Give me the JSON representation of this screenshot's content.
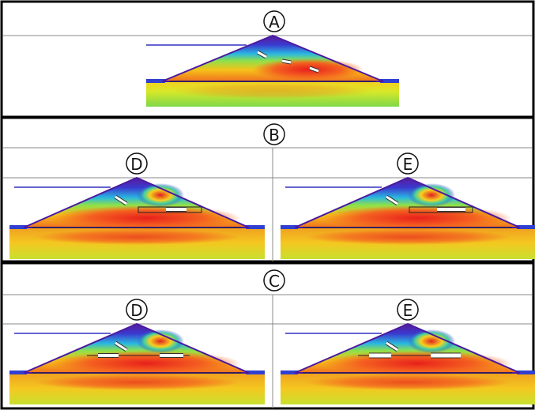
{
  "panels": [
    {
      "label": "A"
    },
    {
      "label": "B",
      "subpanels": [
        {
          "label": "D"
        },
        {
          "label": "E"
        }
      ]
    },
    {
      "label": "C",
      "subpanels": [
        {
          "label": "D"
        },
        {
          "label": "E"
        }
      ]
    }
  ]
}
